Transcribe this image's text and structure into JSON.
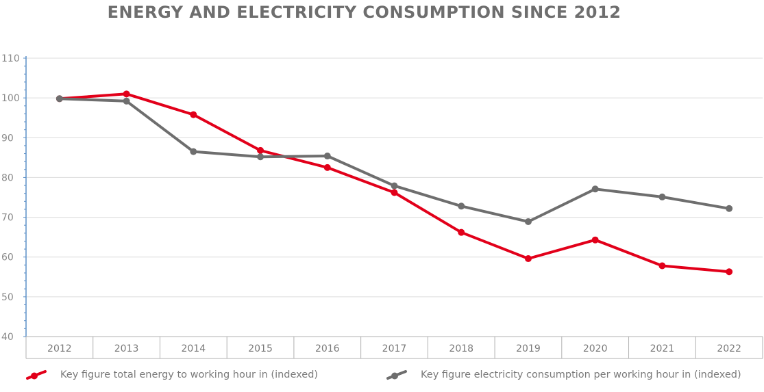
{
  "chart_data": {
    "type": "line",
    "title": "ENERGY AND ELECTRICITY CONSUMPTION SINCE 2012",
    "xlabel": "",
    "ylabel": "",
    "categories": [
      "2012",
      "2013",
      "2014",
      "2015",
      "2016",
      "2017",
      "2018",
      "2019",
      "2020",
      "2021",
      "2022"
    ],
    "ylim": [
      40,
      110
    ],
    "yticks": [
      40,
      50,
      60,
      70,
      80,
      90,
      100,
      110
    ],
    "grid": true,
    "legend_position": "bottom",
    "series": [
      {
        "name": "Key figure total energy to working hour in (indexed)",
        "color": "#e2001a",
        "values": [
          99.8,
          101.0,
          95.8,
          86.8,
          82.5,
          76.2,
          66.2,
          59.6,
          64.3,
          57.8,
          56.3
        ]
      },
      {
        "name": "Key figure electricity consumption per working hour in (indexed)",
        "color": "#6e6e6e",
        "values": [
          99.8,
          99.2,
          86.5,
          85.2,
          85.4,
          77.9,
          72.8,
          68.9,
          77.1,
          75.1,
          72.2
        ]
      }
    ]
  }
}
